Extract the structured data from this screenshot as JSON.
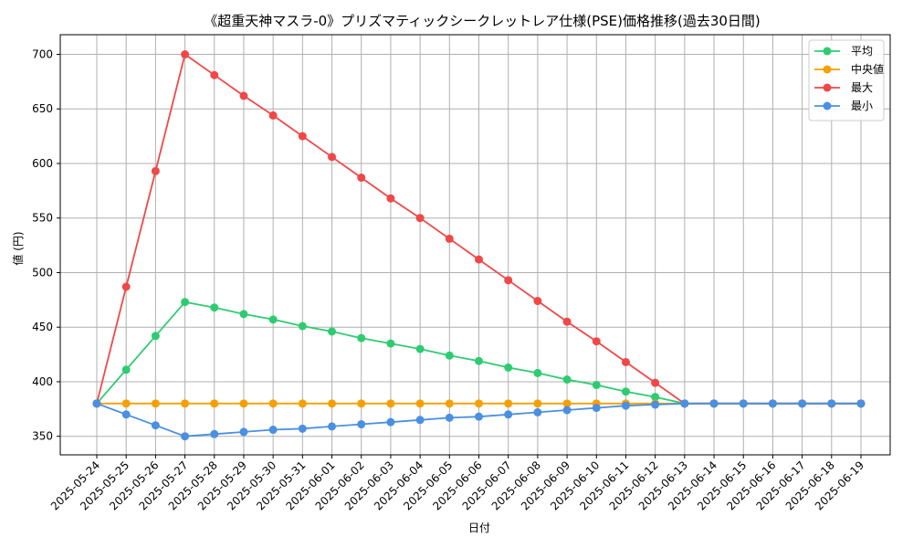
{
  "chart_data": {
    "type": "line",
    "title": "《超重天神マスラ-0》プリズマティックシークレットレア仕様(PSE)価格推移(過去30日間)",
    "xlabel": "日付",
    "ylabel": "値 (円)",
    "ylim": [
      333,
      718
    ],
    "yticks": [
      350,
      400,
      450,
      500,
      550,
      600,
      650,
      700
    ],
    "grid": true,
    "legend_position": "top-right",
    "categories": [
      "2025-05-24",
      "2025-05-25",
      "2025-05-26",
      "2025-05-27",
      "2025-05-28",
      "2025-05-29",
      "2025-05-30",
      "2025-05-31",
      "2025-06-01",
      "2025-06-02",
      "2025-06-03",
      "2025-06-04",
      "2025-06-05",
      "2025-06-06",
      "2025-06-07",
      "2025-06-08",
      "2025-06-09",
      "2025-06-10",
      "2025-06-11",
      "2025-06-12",
      "2025-06-13",
      "2025-06-14",
      "2025-06-15",
      "2025-06-16",
      "2025-06-17",
      "2025-06-18",
      "2025-06-19"
    ],
    "series": [
      {
        "name": "平均",
        "color": "#2ecc71",
        "values": [
          380,
          411,
          442,
          473,
          468,
          462,
          457,
          451,
          446,
          440,
          435,
          430,
          424,
          419,
          413,
          408,
          402,
          397,
          391,
          386,
          380,
          380,
          380,
          380,
          380,
          380,
          380
        ]
      },
      {
        "name": "中央値",
        "color": "#f5a000",
        "values": [
          380,
          380,
          380,
          380,
          380,
          380,
          380,
          380,
          380,
          380,
          380,
          380,
          380,
          380,
          380,
          380,
          380,
          380,
          380,
          380,
          380,
          380,
          380,
          380,
          380,
          380,
          380
        ]
      },
      {
        "name": "最大",
        "color": "#f04848",
        "values": [
          380,
          487,
          593,
          700,
          681,
          662,
          644,
          625,
          606,
          587,
          568,
          550,
          531,
          512,
          493,
          474,
          455,
          437,
          418,
          399,
          380,
          380,
          380,
          380,
          380,
          380,
          380
        ]
      },
      {
        "name": "最小",
        "color": "#4a90e2",
        "values": [
          380,
          370,
          360,
          350,
          352,
          354,
          356,
          357,
          359,
          361,
          363,
          365,
          367,
          368,
          370,
          372,
          374,
          376,
          378,
          379,
          380,
          380,
          380,
          380,
          380,
          380,
          380
        ]
      }
    ]
  }
}
